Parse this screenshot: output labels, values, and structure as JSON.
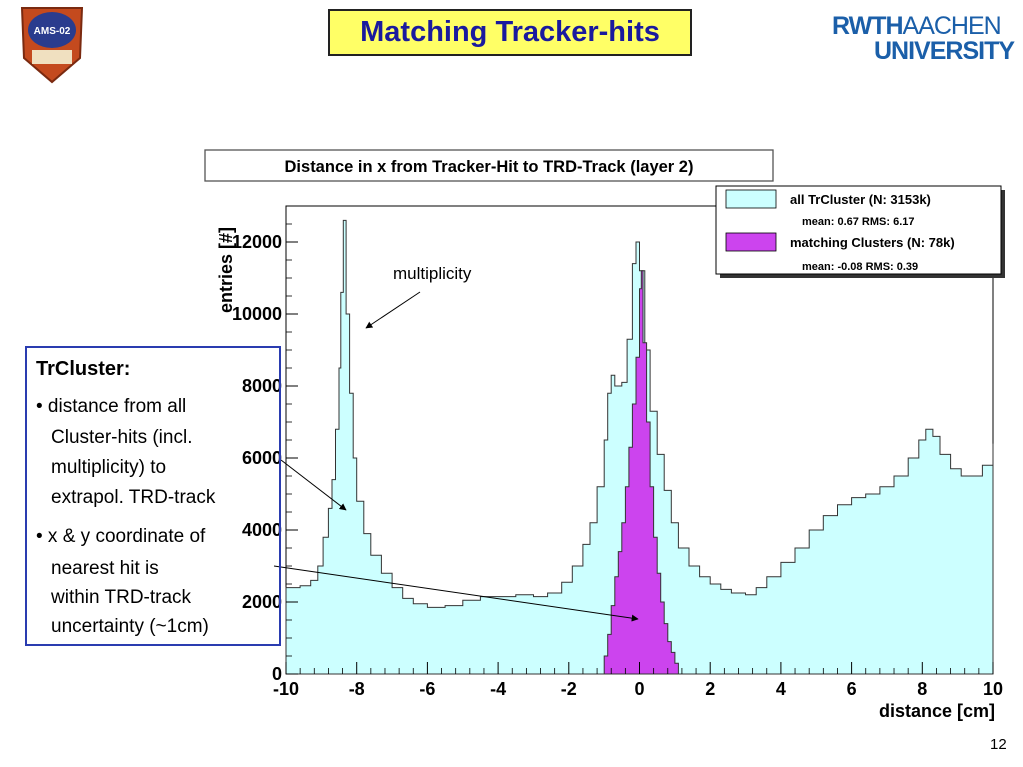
{
  "slide": {
    "title": "Matching Tracker-hits",
    "logo_line1_bold": "RWTH",
    "logo_line1_light": "AACHEN",
    "logo_line2": "UNIVERSITY",
    "mission_badge_text": "AMS-02",
    "page_number": "12",
    "textbox": {
      "heading": "TrCluster:",
      "lines": [
        "• distance from all",
        "Cluster-hits (incl.",
        "multiplicity) to",
        "extrapol. TRD-track",
        "• x & y coordinate of",
        "nearest hit is",
        "within TRD-track",
        "uncertainty (~1cm)"
      ]
    },
    "annotation": "multiplicity"
  },
  "colors": {
    "title_bg": "#ffff66",
    "title_text": "#1a1a9e",
    "all_fill": "#ccffff",
    "match_fill": "#cc44ee",
    "textbox_border": "#2a3cb0",
    "logo": "#1b5fa9"
  },
  "chart_data": {
    "type": "histogram",
    "title": "Distance in x from Tracker-Hit to TRD-Track (layer 2)",
    "xlabel": "distance  [cm]",
    "ylabel": "entries  [#]",
    "xlim": [
      -10,
      10
    ],
    "ylim": [
      0,
      13000
    ],
    "xticks": [
      "-10",
      "-8",
      "-6",
      "-4",
      "-2",
      "0",
      "2",
      "4",
      "6",
      "8",
      "10"
    ],
    "yticks": [
      "0",
      "2000",
      "4000",
      "6000",
      "8000",
      "10000",
      "12000"
    ],
    "legend_position": "top-right",
    "legend": [
      {
        "name": "all TrCluster (N: 3153k)",
        "stats": "mean: 0.67   RMS: 6.17"
      },
      {
        "name": "matching Clusters (N: 78k)",
        "stats": "mean: -0.08   RMS: 0.39"
      }
    ],
    "series": [
      {
        "name": "all TrCluster (N: 3153k)",
        "points": [
          [
            -10,
            2400
          ],
          [
            -9.6,
            2450
          ],
          [
            -9.3,
            2600
          ],
          [
            -9.1,
            3000
          ],
          [
            -8.95,
            3800
          ],
          [
            -8.8,
            4600
          ],
          [
            -8.7,
            5400
          ],
          [
            -8.6,
            6800
          ],
          [
            -8.5,
            8500
          ],
          [
            -8.45,
            10600
          ],
          [
            -8.38,
            12600
          ],
          [
            -8.3,
            10000
          ],
          [
            -8.2,
            7800
          ],
          [
            -8.1,
            6000
          ],
          [
            -8.0,
            4800
          ],
          [
            -7.8,
            3900
          ],
          [
            -7.6,
            3300
          ],
          [
            -7.3,
            2800
          ],
          [
            -7.0,
            2400
          ],
          [
            -6.7,
            2100
          ],
          [
            -6.4,
            1950
          ],
          [
            -6.0,
            1850
          ],
          [
            -5.5,
            1900
          ],
          [
            -5.0,
            2050
          ],
          [
            -4.5,
            2150
          ],
          [
            -4.0,
            2150
          ],
          [
            -3.5,
            2200
          ],
          [
            -3.0,
            2150
          ],
          [
            -2.6,
            2250
          ],
          [
            -2.2,
            2550
          ],
          [
            -1.9,
            3000
          ],
          [
            -1.6,
            3600
          ],
          [
            -1.4,
            4200
          ],
          [
            -1.2,
            5200
          ],
          [
            -1.0,
            6500
          ],
          [
            -0.9,
            7800
          ],
          [
            -0.8,
            8300
          ],
          [
            -0.7,
            8000
          ],
          [
            -0.5,
            8100
          ],
          [
            -0.35,
            9300
          ],
          [
            -0.2,
            11400
          ],
          [
            -0.1,
            12000
          ],
          [
            0,
            11200
          ],
          [
            0.15,
            9000
          ],
          [
            0.3,
            7300
          ],
          [
            0.5,
            6100
          ],
          [
            0.7,
            5100
          ],
          [
            0.9,
            4200
          ],
          [
            1.1,
            3500
          ],
          [
            1.4,
            3000
          ],
          [
            1.7,
            2700
          ],
          [
            2.0,
            2500
          ],
          [
            2.3,
            2350
          ],
          [
            2.6,
            2250
          ],
          [
            3.0,
            2200
          ],
          [
            3.3,
            2400
          ],
          [
            3.6,
            2700
          ],
          [
            4.0,
            3100
          ],
          [
            4.4,
            3500
          ],
          [
            4.8,
            4000
          ],
          [
            5.2,
            4400
          ],
          [
            5.6,
            4700
          ],
          [
            6.0,
            4900
          ],
          [
            6.4,
            5000
          ],
          [
            6.8,
            5200
          ],
          [
            7.2,
            5500
          ],
          [
            7.6,
            6000
          ],
          [
            7.9,
            6500
          ],
          [
            8.1,
            6800
          ],
          [
            8.3,
            6600
          ],
          [
            8.5,
            6100
          ],
          [
            8.8,
            5700
          ],
          [
            9.1,
            5500
          ],
          [
            9.4,
            5500
          ],
          [
            9.7,
            5800
          ],
          [
            10,
            6400
          ]
        ]
      },
      {
        "name": "matching Clusters (N: 78k)",
        "points": [
          [
            -1.1,
            0
          ],
          [
            -1.0,
            500
          ],
          [
            -0.9,
            1100
          ],
          [
            -0.8,
            1900
          ],
          [
            -0.7,
            2700
          ],
          [
            -0.6,
            3400
          ],
          [
            -0.5,
            4200
          ],
          [
            -0.4,
            5200
          ],
          [
            -0.3,
            6300
          ],
          [
            -0.2,
            7500
          ],
          [
            -0.1,
            8800
          ],
          [
            0,
            10700
          ],
          [
            0.05,
            11200
          ],
          [
            0.1,
            9200
          ],
          [
            0.2,
            7000
          ],
          [
            0.3,
            5200
          ],
          [
            0.4,
            3800
          ],
          [
            0.5,
            2800
          ],
          [
            0.6,
            2000
          ],
          [
            0.7,
            1400
          ],
          [
            0.8,
            900
          ],
          [
            0.9,
            600
          ],
          [
            1.0,
            300
          ],
          [
            1.1,
            0
          ]
        ]
      }
    ]
  }
}
